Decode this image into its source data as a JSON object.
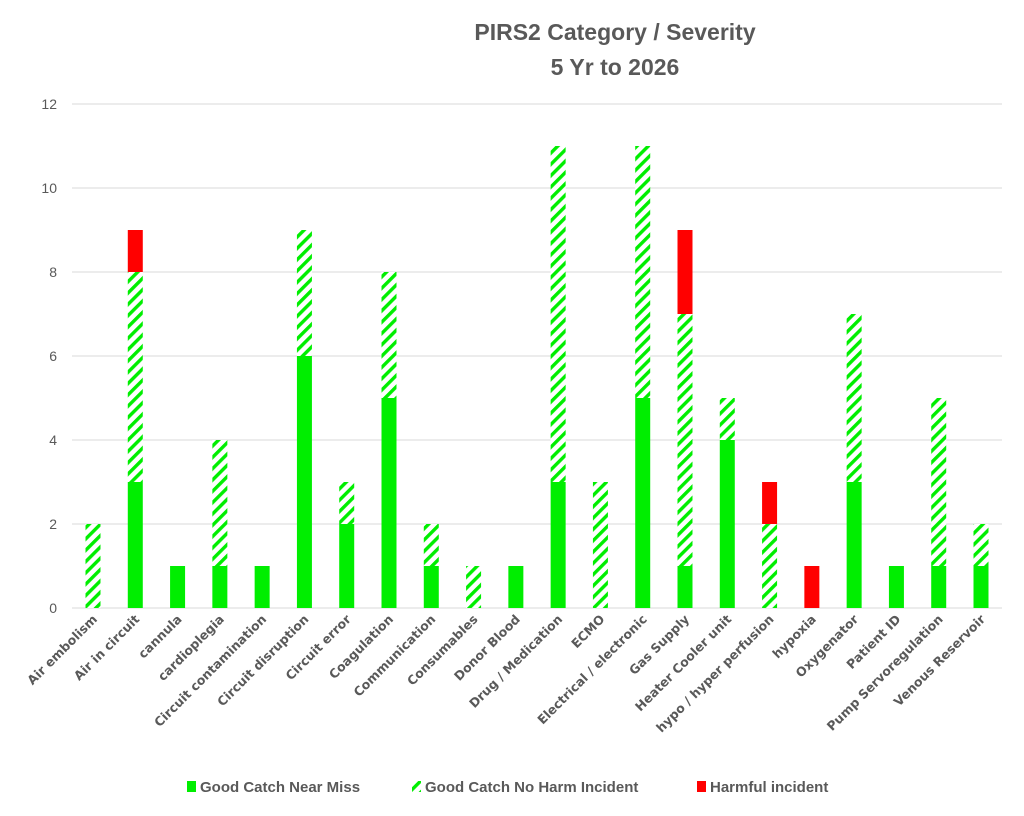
{
  "chart_data": {
    "type": "bar",
    "stacked": true,
    "title": "PIRS2 Category / Severity",
    "subtitle": "5 Yr to 2026",
    "xlabel": "",
    "ylabel": "",
    "ylim": [
      0,
      12
    ],
    "yticks": [
      0,
      2,
      4,
      6,
      8,
      10,
      12
    ],
    "grid": true,
    "legend_position": "bottom",
    "categories": [
      "Air embolism",
      "Air in circuit",
      "cannula",
      "cardioplegia",
      "Circuit contamination",
      "Circuit disruption",
      "Circuit error",
      "Coagulation",
      "Communication",
      "Consumables",
      "Donor Blood",
      "Drug / Medication",
      "ECMO",
      "Electrical / electronic",
      "Gas Supply",
      "Heater Cooler unit",
      "hypo / hyper perfusion",
      "hypoxia",
      "Oxygenator",
      "Patient ID",
      "Pump Servoregulation",
      "Venous Reservoir"
    ],
    "series": [
      {
        "name": "Good Catch Near Miss",
        "color": "#00ee00",
        "pattern": "solid",
        "values": [
          0,
          3,
          1,
          1,
          1,
          6,
          2,
          5,
          1,
          0,
          1,
          3,
          0,
          5,
          1,
          4,
          0,
          0,
          3,
          1,
          1,
          1
        ]
      },
      {
        "name": "Good Catch No Harm Incident",
        "color": "#00ee00",
        "pattern": "diagonal-stripes",
        "values": [
          2,
          5,
          0,
          3,
          0,
          3,
          1,
          3,
          1,
          1,
          0,
          8,
          3,
          6,
          6,
          1,
          2,
          0,
          4,
          0,
          4,
          1
        ]
      },
      {
        "name": "Harmful incident",
        "color": "#ff0000",
        "pattern": "solid",
        "values": [
          0,
          1,
          0,
          0,
          0,
          0,
          0,
          0,
          0,
          0,
          0,
          0,
          0,
          0,
          2,
          0,
          1,
          1,
          0,
          0,
          0,
          0
        ]
      }
    ]
  }
}
